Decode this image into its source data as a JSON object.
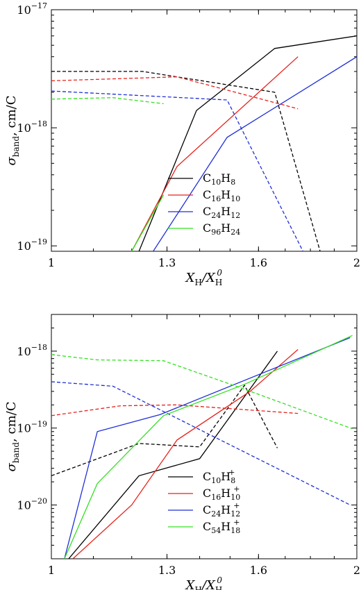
{
  "chart_data": [
    {
      "type": "line",
      "panel": "top",
      "xscale": "log",
      "yscale": "log",
      "xlim": [
        1,
        2
      ],
      "ylim": [
        9e-20,
        1e-17
      ],
      "xlabel": "X_H/X_H^0",
      "ylabel": "σ_band, cm/C",
      "xticks": [
        {
          "v": 1,
          "label": "1"
        },
        {
          "v": 1.3,
          "label": "1.3"
        },
        {
          "v": 1.6,
          "label": "1.6"
        },
        {
          "v": 2,
          "label": "2"
        }
      ],
      "yticks": [
        {
          "v": 1e-17,
          "mant": "10",
          "exp": "−17"
        },
        {
          "v": 1e-18,
          "mant": "10",
          "exp": "−18"
        },
        {
          "v": 1e-19,
          "mant": "10",
          "exp": "−19"
        }
      ],
      "legend_position": "lower-center",
      "series": [
        {
          "name": "C10H8",
          "base": "C",
          "parts": [
            [
              "C",
              "10"
            ],
            [
              "H",
              "8"
            ]
          ],
          "charge": "",
          "color": "#000000",
          "solid": [
            [
              1.22,
              9e-20
            ],
            [
              1.39,
              1.4e-18
            ],
            [
              1.66,
              4.7e-18
            ],
            [
              2.0,
              6e-18
            ]
          ],
          "dashed": [
            [
              1.0,
              3e-18
            ],
            [
              1.23,
              3e-18
            ],
            [
              1.66,
              2e-18
            ],
            [
              1.84,
              9e-20
            ]
          ]
        },
        {
          "name": "C16H10",
          "parts": [
            [
              "C",
              "16"
            ],
            [
              "H",
              "10"
            ]
          ],
          "charge": "",
          "color": "#e8201a",
          "solid": [
            [
              1.2,
              9e-20
            ],
            [
              1.33,
              4.7e-19
            ],
            [
              1.75,
              4e-18
            ]
          ],
          "dashed": [
            [
              1.0,
              2.5e-18
            ],
            [
              1.33,
              2.7e-18
            ],
            [
              1.75,
              1.45e-18
            ]
          ]
        },
        {
          "name": "C24H12",
          "parts": [
            [
              "C",
              "24"
            ],
            [
              "H",
              "12"
            ]
          ],
          "charge": "",
          "color": "#1f2fd6",
          "solid": [
            [
              1.26,
              9e-20
            ],
            [
              1.49,
              8.3e-19
            ],
            [
              2.0,
              4e-18
            ]
          ],
          "dashed": [
            [
              1.0,
              2.05e-18
            ],
            [
              1.49,
              1.72e-18
            ],
            [
              1.77,
              9e-20
            ]
          ]
        },
        {
          "name": "C96H24",
          "parts": [
            [
              "C",
              "96"
            ],
            [
              "H",
              "24"
            ]
          ],
          "charge": "",
          "color": "#33e021",
          "solid": [
            [
              1.2,
              9e-20
            ],
            [
              1.29,
              2.7e-19
            ]
          ],
          "dashed": [
            [
              1.0,
              1.75e-18
            ],
            [
              1.15,
              1.8e-18
            ],
            [
              1.29,
              1.6e-18
            ]
          ]
        }
      ]
    },
    {
      "type": "line",
      "panel": "bottom",
      "xscale": "log",
      "yscale": "log",
      "xlim": [
        1,
        2
      ],
      "ylim": [
        2e-21,
        3e-18
      ],
      "xlabel": "X_H/X_H^0",
      "ylabel": "σ_band, cm/C",
      "xticks": [
        {
          "v": 1,
          "label": "1"
        },
        {
          "v": 1.3,
          "label": "1.3"
        },
        {
          "v": 1.6,
          "label": "1.6"
        },
        {
          "v": 2,
          "label": "2"
        }
      ],
      "yticks": [
        {
          "v": 1e-18,
          "mant": "10",
          "exp": "−18"
        },
        {
          "v": 1e-19,
          "mant": "10",
          "exp": "−19"
        },
        {
          "v": 1e-20,
          "mant": "10",
          "exp": "−20"
        }
      ],
      "legend_position": "lower-center",
      "series": [
        {
          "name": "C10H8+",
          "parts": [
            [
              "C",
              "10"
            ],
            [
              "H",
              "8"
            ]
          ],
          "charge": "+",
          "color": "#000000",
          "solid": [
            [
              1.04,
              2e-21
            ],
            [
              1.22,
              2.4e-20
            ],
            [
              1.4,
              4e-20
            ],
            [
              1.67,
              1e-18
            ]
          ],
          "dashed": [
            [
              1.0,
              2.4e-20
            ],
            [
              1.22,
              6.3e-20
            ],
            [
              1.4,
              5.7e-20
            ],
            [
              1.55,
              3.6e-19
            ],
            [
              1.67,
              5.5e-20
            ]
          ]
        },
        {
          "name": "C16H10+",
          "parts": [
            [
              "C",
              "16"
            ],
            [
              "H",
              "10"
            ]
          ],
          "charge": "+",
          "color": "#e8201a",
          "solid": [
            [
              1.05,
              2e-21
            ],
            [
              1.2,
              1e-20
            ],
            [
              1.33,
              7e-20
            ],
            [
              1.57,
              3e-19
            ],
            [
              1.75,
              1.05e-18
            ]
          ],
          "dashed": [
            [
              1.0,
              1.45e-19
            ],
            [
              1.17,
              1.95e-19
            ],
            [
              1.33,
              2e-19
            ],
            [
              1.75,
              1.55e-19
            ]
          ]
        },
        {
          "name": "C24H12+",
          "parts": [
            [
              "C",
              "24"
            ],
            [
              "H",
              "12"
            ]
          ],
          "charge": "+",
          "color": "#1f2fd6",
          "solid": [
            [
              1.03,
              2e-21
            ],
            [
              1.11,
              9e-20
            ],
            [
              1.28,
              1.5e-19
            ],
            [
              1.97,
              1.5e-18
            ]
          ],
          "dashed": [
            [
              1.0,
              4e-19
            ],
            [
              1.15,
              3.5e-19
            ],
            [
              1.97,
              1e-20
            ]
          ]
        },
        {
          "name": "C54H18+",
          "parts": [
            [
              "C",
              "54"
            ],
            [
              "H",
              "18"
            ]
          ],
          "charge": "+",
          "color": "#33e021",
          "solid": [
            [
              1.03,
              2e-21
            ],
            [
              1.11,
              1.9e-20
            ],
            [
              1.29,
              1.45e-19
            ],
            [
              1.55,
              3.7e-19
            ],
            [
              1.98,
              1.6e-18
            ]
          ],
          "dashed": [
            [
              1.0,
              9e-19
            ],
            [
              1.11,
              7.7e-19
            ],
            [
              1.29,
              7.5e-19
            ],
            [
              1.55,
              3.2e-19
            ],
            [
              1.98,
              9.8e-20
            ]
          ]
        }
      ]
    }
  ]
}
